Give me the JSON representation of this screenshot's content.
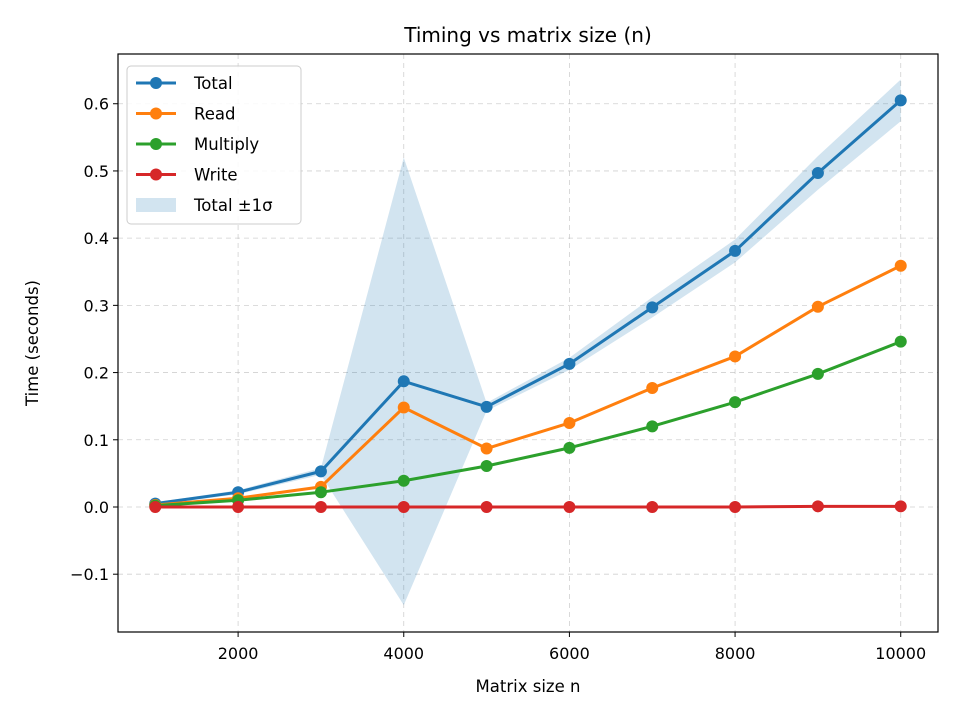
{
  "chart_data": {
    "type": "line",
    "title": "Timing vs matrix size (n)",
    "xlabel": "Matrix size n",
    "ylabel": "Time (seconds)",
    "x": [
      1000,
      2000,
      3000,
      4000,
      5000,
      6000,
      7000,
      8000,
      9000,
      10000
    ],
    "xlim": [
      550,
      10450
    ],
    "ylim": [
      -0.186,
      0.674
    ],
    "xticks": [
      2000,
      4000,
      6000,
      8000,
      10000
    ],
    "xtick_labels": [
      "2000",
      "4000",
      "6000",
      "8000",
      "10000"
    ],
    "yticks": [
      -0.1,
      0.0,
      0.1,
      0.2,
      0.3,
      0.4,
      0.5,
      0.6
    ],
    "ytick_labels": [
      "−0.1",
      "0.0",
      "0.1",
      "0.2",
      "0.3",
      "0.4",
      "0.5",
      "0.6"
    ],
    "grid": true,
    "legend_position": "top-left",
    "series": [
      {
        "name": "Total",
        "color": "#1f77b4",
        "values": [
          0.005,
          0.022,
          0.053,
          0.187,
          0.149,
          0.213,
          0.297,
          0.381,
          0.497,
          0.605
        ]
      },
      {
        "name": "Read",
        "color": "#ff7f0e",
        "values": [
          0.003,
          0.013,
          0.03,
          0.148,
          0.087,
          0.125,
          0.177,
          0.224,
          0.298,
          0.359
        ]
      },
      {
        "name": "Multiply",
        "color": "#2ca02c",
        "values": [
          0.002,
          0.01,
          0.022,
          0.039,
          0.061,
          0.088,
          0.12,
          0.156,
          0.198,
          0.246
        ]
      },
      {
        "name": "Write",
        "color": "#d62728",
        "values": [
          0.0,
          0.0,
          0.0,
          0.0,
          0.0,
          0.0,
          0.0,
          0.0,
          0.001,
          0.001
        ]
      }
    ],
    "band": {
      "name": "Total ±1σ",
      "color": "#1f77b4",
      "opacity": 0.2,
      "upper": [
        0.007,
        0.025,
        0.058,
        0.52,
        0.155,
        0.222,
        0.312,
        0.398,
        0.522,
        0.636
      ],
      "lower": [
        0.003,
        0.019,
        0.048,
        -0.146,
        0.143,
        0.204,
        0.282,
        0.364,
        0.472,
        0.574
      ]
    }
  }
}
